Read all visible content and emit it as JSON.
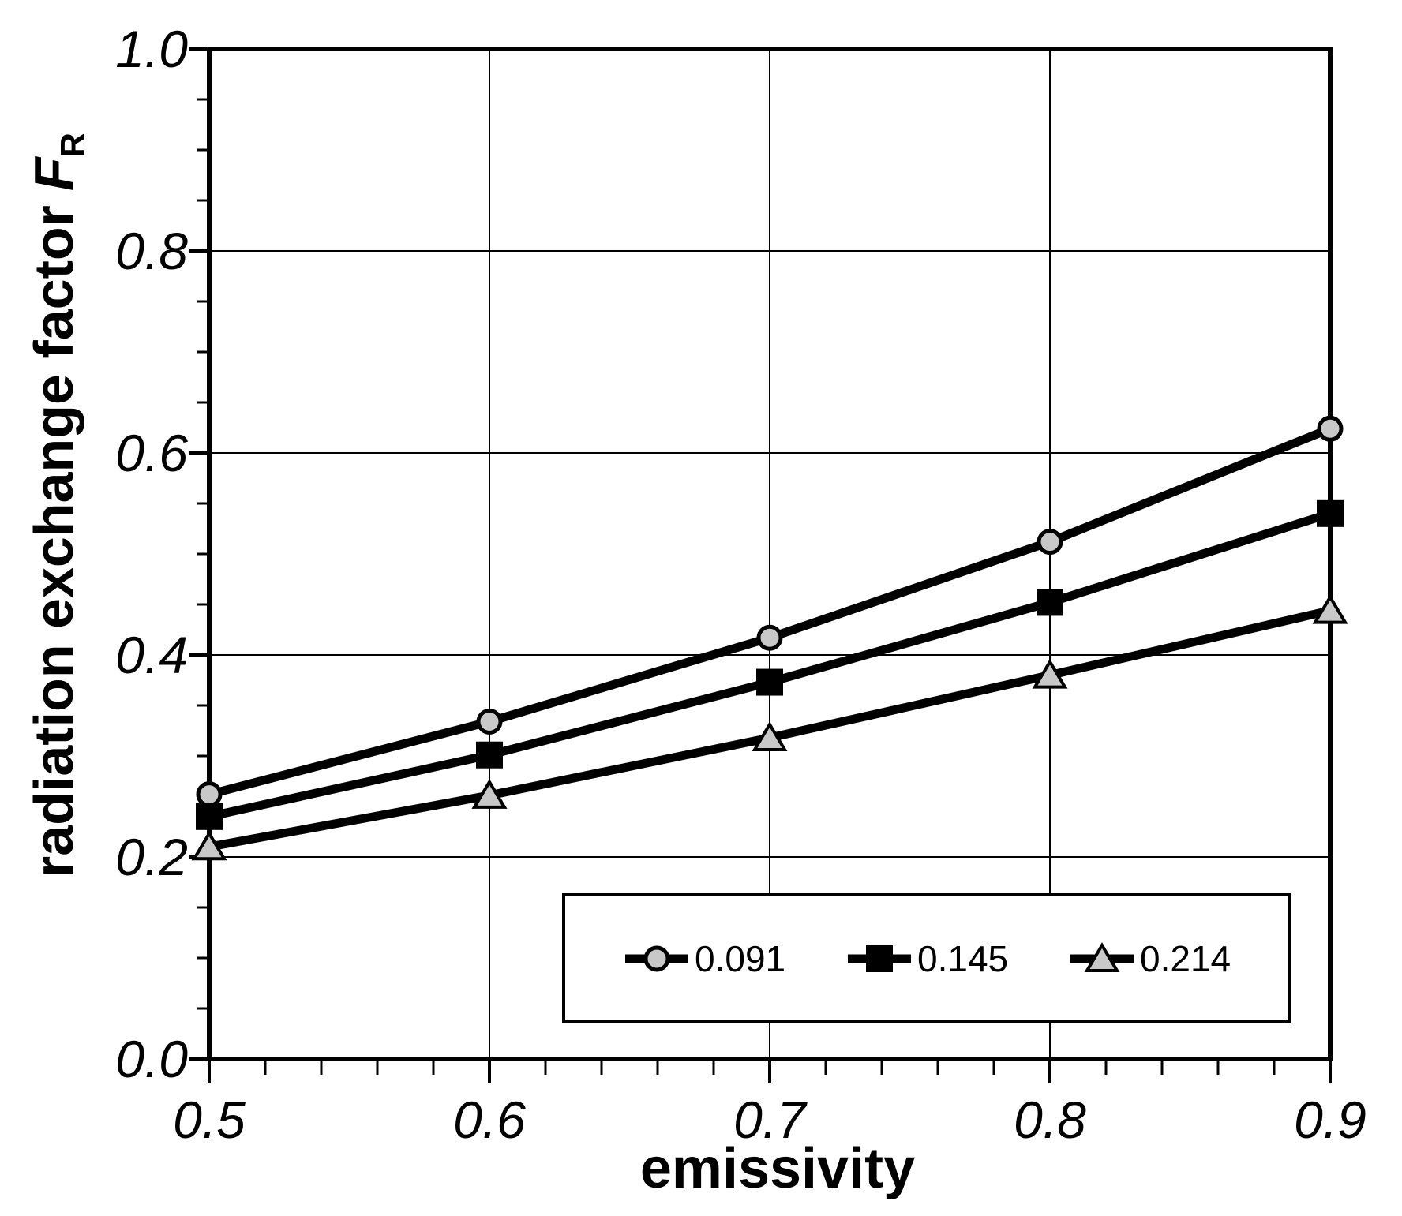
{
  "figure": {
    "background": "#ffffff",
    "frame_color": "#000000",
    "grid_color": "#000000"
  },
  "chart_data": {
    "type": "line",
    "title": "",
    "xlabel": "emissivity",
    "ylabel": "radiation exchange factor",
    "ylabel_symbol": "F",
    "ylabel_symbol_subscript": "R",
    "xlim": [
      0.5,
      0.9
    ],
    "ylim": [
      0.0,
      1.0
    ],
    "x_major_ticks": [
      0.5,
      0.6,
      0.7,
      0.8,
      0.9
    ],
    "x_tick_labels": [
      "0.5",
      "0.6",
      "0.7",
      "0.8",
      "0.9"
    ],
    "x_minor_step": 0.02,
    "y_major_ticks": [
      0.0,
      0.2,
      0.4,
      0.6,
      0.8,
      1.0
    ],
    "y_tick_labels": [
      "0.0",
      "0.2",
      "0.4",
      "0.6",
      "0.8",
      "1.0"
    ],
    "y_minor_step": 0.05,
    "grid": true,
    "legend_position": "bottom-center-inside",
    "x": [
      0.5,
      0.6,
      0.7,
      0.8,
      0.9
    ],
    "series": [
      {
        "name": "0.091",
        "marker": "circle",
        "marker_fill": "#c8c8c8",
        "line_color": "#000000",
        "values": [
          0.262,
          0.334,
          0.417,
          0.512,
          0.624
        ]
      },
      {
        "name": "0.145",
        "marker": "square",
        "marker_fill": "#000000",
        "line_color": "#000000",
        "values": [
          0.24,
          0.301,
          0.373,
          0.452,
          0.54
        ]
      },
      {
        "name": "0.214",
        "marker": "triangle",
        "marker_fill": "#c8c8c8",
        "line_color": "#000000",
        "values": [
          0.21,
          0.261,
          0.318,
          0.38,
          0.444
        ]
      }
    ]
  }
}
